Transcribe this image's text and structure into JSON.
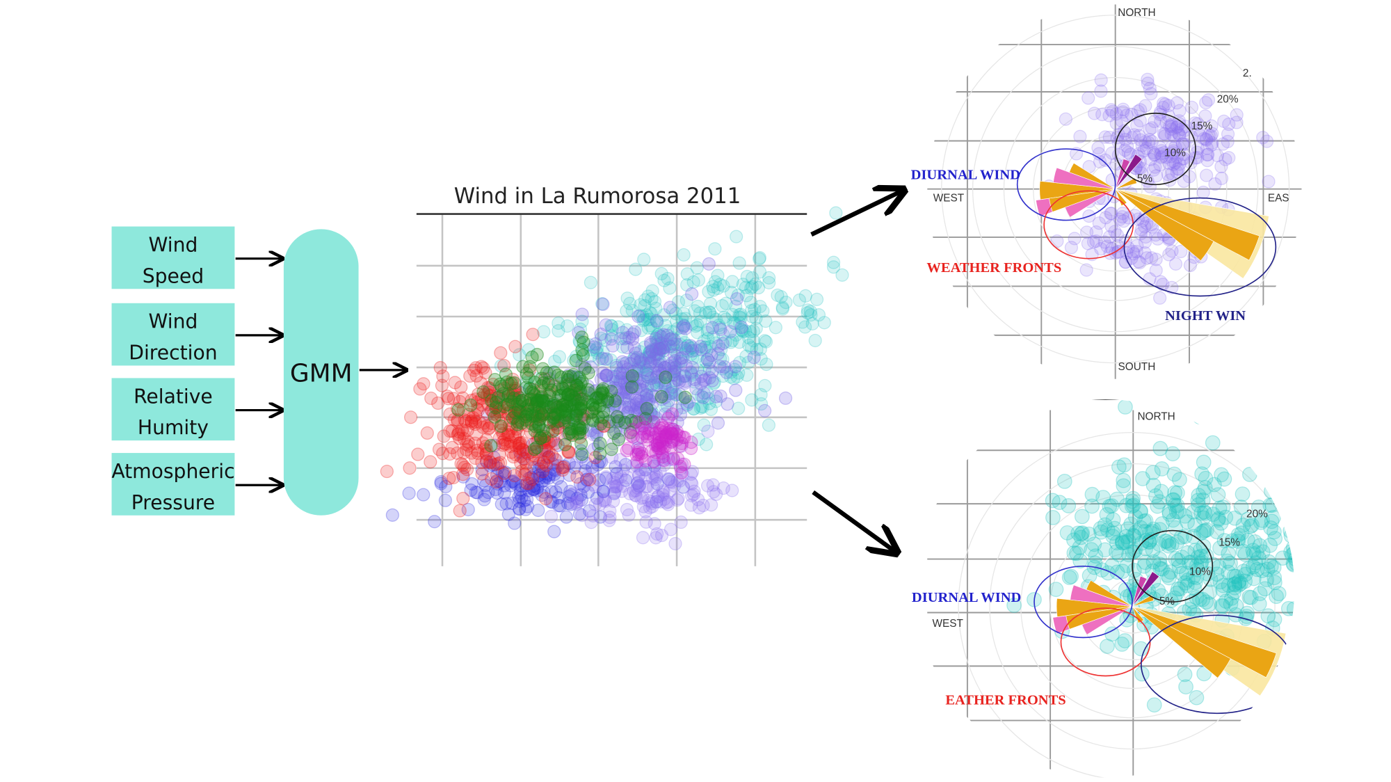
{
  "inputs": [
    {
      "lines": [
        "Wind",
        "Speed"
      ]
    },
    {
      "lines": [
        "Wind",
        "Direction"
      ]
    },
    {
      "lines": [
        "Relative",
        "Humity"
      ]
    },
    {
      "lines": [
        "Atmospheric",
        "Pressure"
      ]
    }
  ],
  "model": {
    "label": "GMM"
  },
  "scatter": {
    "title": "Wind in La Rumorosa 2011"
  },
  "rose_top": {
    "north": "NORTH",
    "south": "SOUTH",
    "west": "WEST",
    "east": "EAS",
    "rings": [
      "2.",
      "20%",
      "15%",
      "10%",
      "5%"
    ],
    "diurnal": "DIURNAL WIND",
    "fronts": "WEATHER FRONTS",
    "night": "NIGHT WIN"
  },
  "rose_bottom": {
    "north": "NORTH",
    "west": "WEST",
    "rings": [
      "20%",
      "15%",
      "10%",
      "5%"
    ],
    "diurnal": "DIURNAL WIND",
    "fronts": "EATHER FRONTS"
  }
}
